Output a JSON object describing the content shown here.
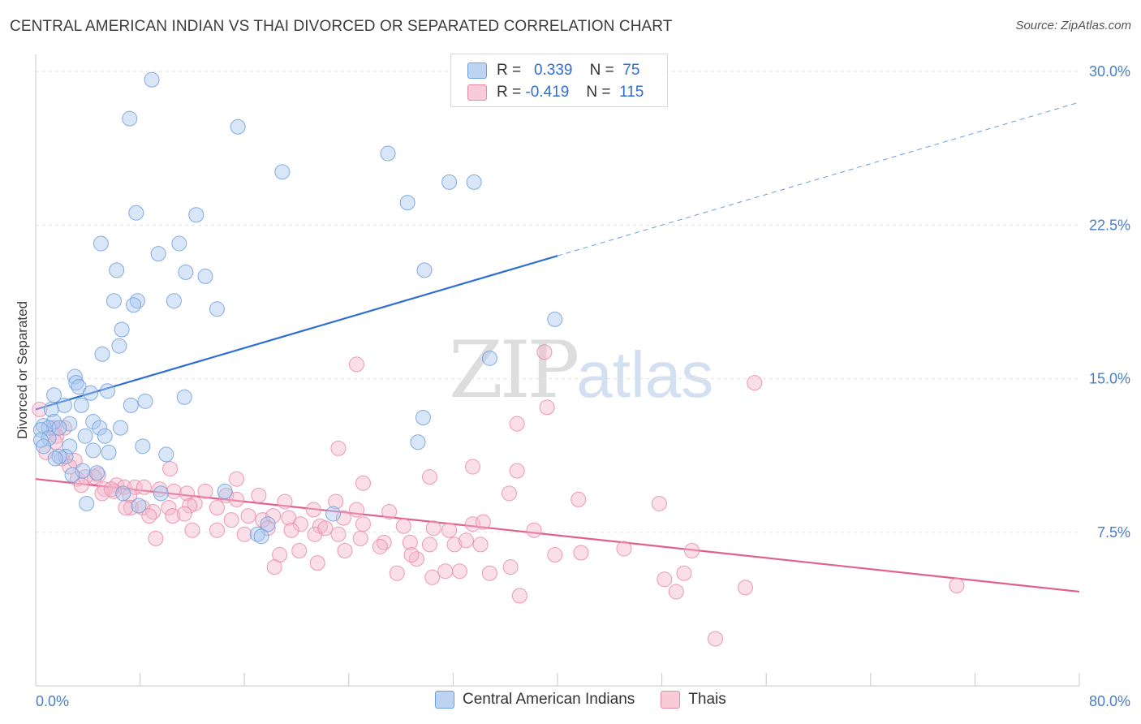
{
  "title": "CENTRAL AMERICAN INDIAN VS THAI DIVORCED OR SEPARATED CORRELATION CHART",
  "source": "Source: ZipAtlas.com",
  "watermark": {
    "zip": "ZIP",
    "atlas": "atlas"
  },
  "legend": {
    "rows": [
      {
        "r_label": "R =",
        "r_value": "0.339",
        "n_label": "N =",
        "n_value": "75",
        "color": "#a9c8ef"
      },
      {
        "r_label": "R =",
        "r_value": "-0.419",
        "n_label": "N =",
        "n_value": "115",
        "color": "#f5b8cb"
      }
    ]
  },
  "bottom_legend": [
    {
      "label": "Central American Indians",
      "color": "#a9c8ef"
    },
    {
      "label": "Thais",
      "color": "#f5b8cb"
    }
  ],
  "chart_data": {
    "type": "scatter",
    "title": "CENTRAL AMERICAN INDIAN VS THAI DIVORCED OR SEPARATED CORRELATION CHART",
    "xlabel": "",
    "ylabel": "Divorced or Separated",
    "xlim": [
      0,
      80
    ],
    "ylim": [
      0,
      30.6
    ],
    "x_tick_labels": [
      {
        "value": 0,
        "label": "0.0%"
      },
      {
        "value": 80,
        "label": "80.0%"
      }
    ],
    "y_tick_labels": [
      {
        "value": 7.5,
        "label": "7.5%"
      },
      {
        "value": 15.0,
        "label": "15.0%"
      },
      {
        "value": 22.5,
        "label": "22.5%"
      },
      {
        "value": 30.0,
        "label": "30.0%"
      }
    ],
    "grid": true,
    "legend_position": "top-center",
    "series": [
      {
        "name": "Central American Indians",
        "color": "#a9c8ef",
        "edge_color": "#6d9fdc",
        "trend": {
          "x_start": 0,
          "y_start": 13.5,
          "x_solid_end": 40,
          "y_solid_end": 21.0,
          "x_end": 80,
          "y_end": 28.5,
          "color": "#2e6fcf"
        },
        "points": [
          [
            8.9,
            29.6
          ],
          [
            7.2,
            27.7
          ],
          [
            15.5,
            27.3
          ],
          [
            27.0,
            26.0
          ],
          [
            18.9,
            25.1
          ],
          [
            31.7,
            24.6
          ],
          [
            33.6,
            24.6
          ],
          [
            28.5,
            23.6
          ],
          [
            7.7,
            23.1
          ],
          [
            12.3,
            23.0
          ],
          [
            5.0,
            21.6
          ],
          [
            11.0,
            21.6
          ],
          [
            9.4,
            21.1
          ],
          [
            6.2,
            20.3
          ],
          [
            11.5,
            20.2
          ],
          [
            13.0,
            20.0
          ],
          [
            29.8,
            20.3
          ],
          [
            6.0,
            18.8
          ],
          [
            7.8,
            18.8
          ],
          [
            10.6,
            18.8
          ],
          [
            7.5,
            18.6
          ],
          [
            13.9,
            18.4
          ],
          [
            39.8,
            17.9
          ],
          [
            6.6,
            17.4
          ],
          [
            6.4,
            16.6
          ],
          [
            5.1,
            16.2
          ],
          [
            34.8,
            16.0
          ],
          [
            3.0,
            15.1
          ],
          [
            3.1,
            14.8
          ],
          [
            3.3,
            14.6
          ],
          [
            1.4,
            14.2
          ],
          [
            4.2,
            14.3
          ],
          [
            5.5,
            14.4
          ],
          [
            11.4,
            14.1
          ],
          [
            8.4,
            13.9
          ],
          [
            7.3,
            13.7
          ],
          [
            2.2,
            13.7
          ],
          [
            3.5,
            13.7
          ],
          [
            1.2,
            13.5
          ],
          [
            4.4,
            12.9
          ],
          [
            1.4,
            12.9
          ],
          [
            2.6,
            12.8
          ],
          [
            0.6,
            12.7
          ],
          [
            1.0,
            12.6
          ],
          [
            1.8,
            12.6
          ],
          [
            0.4,
            12.5
          ],
          [
            4.9,
            12.6
          ],
          [
            6.5,
            12.6
          ],
          [
            29.7,
            13.1
          ],
          [
            1.0,
            12.1
          ],
          [
            5.3,
            12.2
          ],
          [
            3.8,
            12.2
          ],
          [
            0.4,
            12.0
          ],
          [
            0.6,
            11.7
          ],
          [
            8.2,
            11.7
          ],
          [
            2.6,
            11.7
          ],
          [
            4.4,
            11.5
          ],
          [
            5.6,
            11.4
          ],
          [
            10.0,
            11.3
          ],
          [
            29.3,
            11.9
          ],
          [
            2.3,
            11.2
          ],
          [
            1.8,
            11.2
          ],
          [
            1.5,
            11.1
          ],
          [
            3.6,
            10.5
          ],
          [
            4.7,
            10.4
          ],
          [
            2.8,
            10.3
          ],
          [
            14.5,
            9.5
          ],
          [
            9.6,
            9.4
          ],
          [
            6.7,
            9.4
          ],
          [
            7.9,
            8.8
          ],
          [
            3.9,
            8.9
          ],
          [
            17.8,
            7.9
          ],
          [
            22.8,
            8.4
          ],
          [
            17.0,
            7.4
          ],
          [
            17.3,
            7.3
          ]
        ]
      },
      {
        "name": "Thais",
        "color": "#f5b8cb",
        "edge_color": "#e88aa8",
        "trend": {
          "x_start": 0,
          "y_start": 10.1,
          "x_end": 80,
          "y_end": 4.6,
          "color": "#e0608f"
        },
        "points": [
          [
            0.3,
            13.5
          ],
          [
            1.4,
            12.6
          ],
          [
            2.2,
            12.6
          ],
          [
            1.6,
            12.2
          ],
          [
            1.5,
            11.9
          ],
          [
            0.8,
            11.4
          ],
          [
            2.0,
            11.1
          ],
          [
            3.0,
            11.0
          ],
          [
            2.6,
            10.7
          ],
          [
            4.8,
            10.3
          ],
          [
            4.5,
            10.2
          ],
          [
            3.2,
            10.1
          ],
          [
            3.8,
            10.2
          ],
          [
            6.2,
            9.8
          ],
          [
            6.8,
            9.7
          ],
          [
            7.6,
            9.7
          ],
          [
            5.3,
            9.6
          ],
          [
            6.0,
            9.5
          ],
          [
            8.3,
            9.7
          ],
          [
            9.5,
            9.6
          ],
          [
            5.1,
            9.4
          ],
          [
            7.2,
            9.3
          ],
          [
            10.6,
            9.5
          ],
          [
            11.6,
            9.4
          ],
          [
            13.0,
            9.5
          ],
          [
            14.6,
            9.3
          ],
          [
            15.4,
            9.1
          ],
          [
            17.1,
            9.3
          ],
          [
            19.1,
            9.0
          ],
          [
            23.0,
            9.0
          ],
          [
            24.6,
            8.6
          ],
          [
            27.1,
            8.5
          ],
          [
            12.2,
            8.9
          ],
          [
            10.2,
            8.7
          ],
          [
            11.8,
            8.8
          ],
          [
            7.3,
            8.7
          ],
          [
            8.2,
            8.7
          ],
          [
            9.0,
            8.5
          ],
          [
            10.5,
            8.3
          ],
          [
            13.9,
            8.7
          ],
          [
            15.0,
            8.1
          ],
          [
            16.3,
            8.3
          ],
          [
            17.4,
            8.1
          ],
          [
            18.2,
            8.3
          ],
          [
            19.4,
            8.2
          ],
          [
            20.3,
            7.9
          ],
          [
            21.8,
            7.8
          ],
          [
            23.6,
            8.2
          ],
          [
            25.1,
            7.9
          ],
          [
            28.2,
            7.8
          ],
          [
            30.5,
            7.7
          ],
          [
            31.7,
            7.6
          ],
          [
            33.5,
            7.9
          ],
          [
            6.9,
            8.7
          ],
          [
            8.7,
            8.3
          ],
          [
            12.0,
            7.6
          ],
          [
            13.9,
            7.6
          ],
          [
            16.0,
            7.4
          ],
          [
            17.8,
            7.7
          ],
          [
            19.6,
            7.6
          ],
          [
            21.4,
            7.4
          ],
          [
            22.2,
            7.7
          ],
          [
            23.2,
            7.4
          ],
          [
            24.9,
            7.2
          ],
          [
            26.7,
            7.0
          ],
          [
            28.7,
            7.0
          ],
          [
            30.2,
            6.9
          ],
          [
            32.1,
            6.9
          ],
          [
            33.0,
            7.1
          ],
          [
            34.1,
            6.9
          ],
          [
            38.2,
            7.6
          ],
          [
            41.8,
            6.5
          ],
          [
            9.2,
            7.2
          ],
          [
            11.4,
            8.4
          ],
          [
            18.7,
            6.4
          ],
          [
            20.2,
            6.6
          ],
          [
            21.6,
            6.0
          ],
          [
            23.7,
            6.6
          ],
          [
            26.4,
            6.8
          ],
          [
            29.2,
            6.2
          ],
          [
            30.4,
            5.3
          ],
          [
            32.5,
            5.6
          ],
          [
            34.8,
            5.5
          ],
          [
            36.4,
            5.8
          ],
          [
            37.1,
            4.4
          ],
          [
            39.8,
            6.4
          ],
          [
            45.1,
            6.7
          ],
          [
            48.2,
            5.2
          ],
          [
            49.1,
            4.6
          ],
          [
            49.7,
            5.5
          ],
          [
            50.3,
            6.6
          ],
          [
            52.1,
            2.3
          ],
          [
            54.4,
            4.8
          ],
          [
            70.6,
            4.9
          ],
          [
            18.3,
            5.8
          ],
          [
            27.7,
            5.5
          ],
          [
            31.4,
            5.6
          ],
          [
            28.8,
            6.4
          ],
          [
            34.3,
            8.0
          ],
          [
            25.1,
            9.9
          ],
          [
            30.2,
            10.2
          ],
          [
            33.5,
            10.7
          ],
          [
            36.9,
            10.5
          ],
          [
            36.3,
            9.4
          ],
          [
            41.6,
            9.1
          ],
          [
            47.8,
            8.9
          ],
          [
            23.2,
            11.6
          ],
          [
            36.9,
            12.8
          ],
          [
            24.6,
            15.7
          ],
          [
            39.0,
            16.3
          ],
          [
            39.2,
            13.6
          ],
          [
            55.1,
            14.8
          ],
          [
            15.4,
            10.1
          ],
          [
            10.3,
            10.6
          ],
          [
            5.8,
            9.6
          ],
          [
            3.5,
            9.8
          ],
          [
            21.3,
            8.6
          ]
        ]
      }
    ]
  }
}
